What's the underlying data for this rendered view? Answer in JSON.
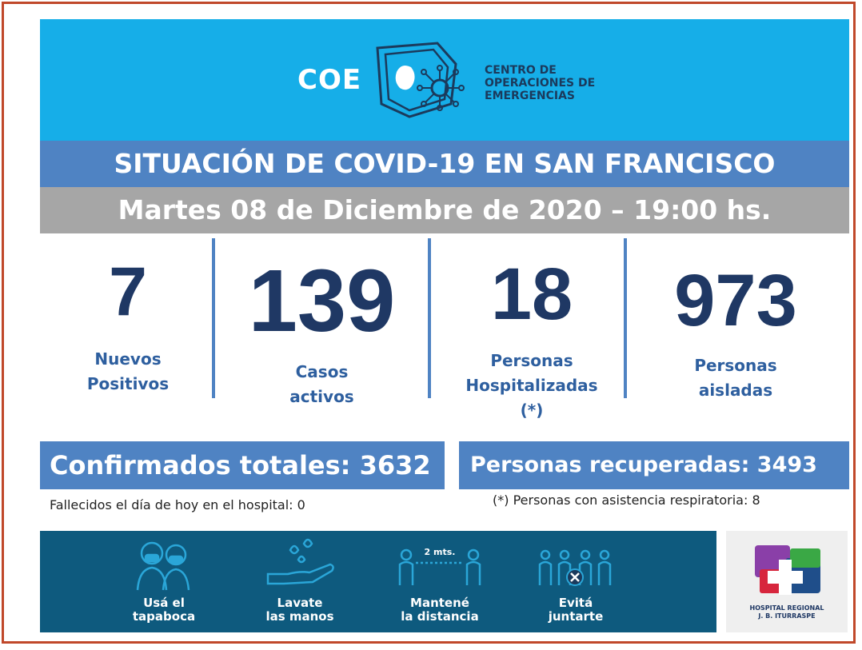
{
  "logo": {
    "abbr": "COE",
    "line1": "CENTRO DE",
    "line2": "OPERACIONES DE",
    "line3": "EMERGENCIAS"
  },
  "title": "SITUACIÓN DE COVID-19 EN SAN FRANCISCO",
  "date": "Martes 08 de Diciembre de 2020 – 19:00 hs.",
  "stats": [
    {
      "value": "7",
      "line1": "Nuevos",
      "line2": "Positivos",
      "line3": ""
    },
    {
      "value": "139",
      "line1": "Casos",
      "line2": "activos",
      "line3": ""
    },
    {
      "value": "18",
      "line1": "Personas",
      "line2": "Hospitalizadas",
      "line3": "(*)"
    },
    {
      "value": "973",
      "line1": "Personas",
      "line2": "aisladas",
      "line3": ""
    }
  ],
  "confirmados": "Confirmados totales: 3632",
  "recuperadas": "Personas recuperadas: 3493",
  "note_fallecidos": "Fallecidos el día de hoy en el hospital: 0",
  "note_respiratoria": "(*) Personas con asistencia respiratoria: 8",
  "tips": [
    {
      "icon": "face-mask-icon",
      "line1": "Usá el",
      "line2": "tapaboca"
    },
    {
      "icon": "hand-wash-icon",
      "line1": "Lavate",
      "line2": "las manos"
    },
    {
      "icon": "distance-icon",
      "line1": "Mantené",
      "line2": "la distancia",
      "distance_label": "2 mts."
    },
    {
      "icon": "no-gathering-icon",
      "line1": "Evitá",
      "line2": "juntarte"
    }
  ],
  "hospital": {
    "line1": "HOSPITAL REGIONAL",
    "line2": "J. B. ITURRASPE"
  },
  "colors": {
    "header_bg": "#16aee8",
    "title_bg": "#4f83c3",
    "date_bg": "#a6a6a6",
    "number": "#1f3864",
    "label": "#2e5f9f",
    "banner_bg": "#0e5a7e",
    "frame": "#c0482a"
  }
}
